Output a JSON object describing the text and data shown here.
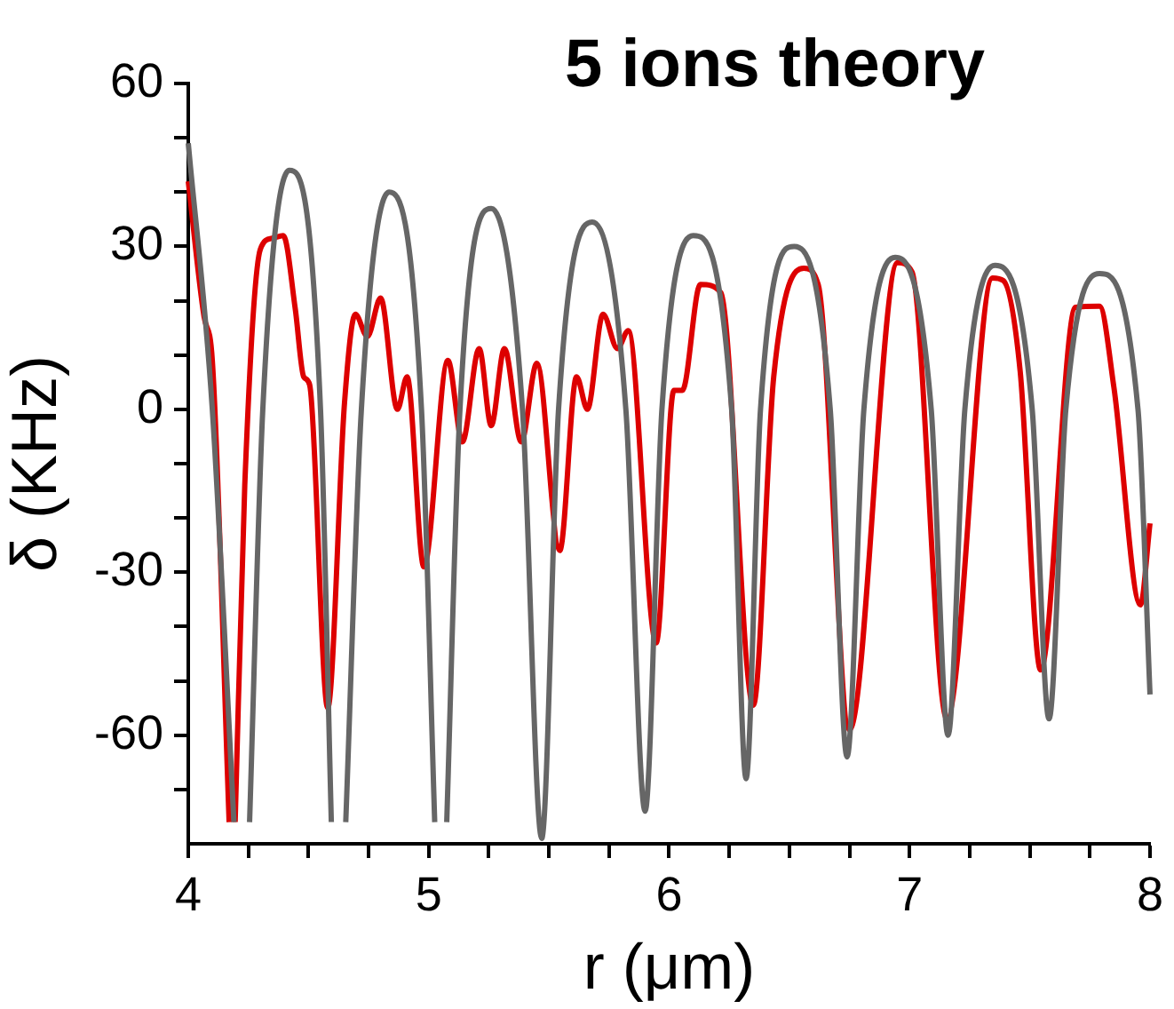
{
  "chart_data": {
    "type": "line",
    "title": "5 ions theory",
    "xlabel": "r (μm)",
    "ylabel": "δ (KHz)",
    "xlim": [
      4,
      8
    ],
    "xticks": [
      4,
      {
        "value": 4.25,
        "label": null
      },
      {
        "value": 4.5,
        "label": null
      },
      {
        "value": 4.75,
        "label": null
      },
      5,
      {
        "value": 5.25,
        "label": null
      },
      {
        "value": 5.5,
        "label": null
      },
      {
        "value": 5.75,
        "label": null
      },
      6,
      {
        "value": 6.25,
        "label": null
      },
      {
        "value": 6.5,
        "label": null
      },
      {
        "value": 6.75,
        "label": null
      },
      7,
      {
        "value": 7.25,
        "label": null
      },
      {
        "value": 7.5,
        "label": null
      },
      {
        "value": 7.75,
        "label": null
      },
      8
    ],
    "ylim": [
      -80,
      60
    ],
    "yticks": [
      {
        "value": -70,
        "label": null
      },
      -60,
      {
        "value": -50,
        "label": null
      },
      {
        "value": -40,
        "label": null
      },
      -30,
      {
        "value": -20,
        "label": null
      },
      {
        "value": -10,
        "label": null
      },
      0,
      {
        "value": 10,
        "label": null
      },
      {
        "value": 20,
        "label": null
      },
      30,
      {
        "value": 40,
        "label": null
      },
      {
        "value": 50,
        "label": null
      },
      60
    ],
    "grid": false,
    "legend": false,
    "marker": "none",
    "line_style": "solid",
    "series": [
      {
        "color": "#666666",
        "x": [
          4.0,
          4.1,
          4.19,
          4.22,
          4.255,
          4.31,
          4.42,
          4.55,
          4.595,
          4.625,
          4.655,
          4.72,
          4.835,
          4.97,
          5.025,
          5.05,
          5.075,
          5.13,
          5.26,
          5.39,
          5.47,
          5.54,
          5.68,
          5.82,
          5.9,
          5.97,
          6.1,
          6.26,
          6.32,
          6.38,
          6.52,
          6.67,
          6.74,
          6.81,
          6.94,
          7.09,
          7.16,
          7.23,
          7.355,
          7.51,
          7.58,
          7.65,
          7.79,
          7.95,
          8.0
        ],
        "values": [
          49,
          0,
          -76,
          null,
          -76,
          0,
          44,
          0,
          -76,
          null,
          -76,
          0,
          40,
          0,
          -76,
          null,
          -76,
          0,
          37,
          0,
          -79,
          0,
          34.5,
          0,
          -74,
          0,
          32,
          0,
          -68,
          0,
          30,
          0,
          -64,
          0,
          28,
          0,
          -60,
          0,
          26.5,
          0,
          -57,
          0,
          25,
          0,
          -52.5
        ]
      },
      {
        "color": "#dd0000",
        "x": [
          4.0,
          4.066,
          4.1,
          4.17,
          4.18,
          4.195,
          4.235,
          4.3,
          4.35,
          4.395,
          4.445,
          4.48,
          4.505,
          4.58,
          4.65,
          4.695,
          4.745,
          4.8,
          4.87,
          4.91,
          4.98,
          5.08,
          5.14,
          5.21,
          5.26,
          5.315,
          5.385,
          5.45,
          5.545,
          5.615,
          5.66,
          5.725,
          5.785,
          5.83,
          5.946,
          6.02,
          6.055,
          6.13,
          6.215,
          6.35,
          6.435,
          6.56,
          6.62,
          6.75,
          6.95,
          7.01,
          7.155,
          7.345,
          7.39,
          7.46,
          7.545,
          7.69,
          7.79,
          7.85,
          7.96,
          8.0
        ],
        "values": [
          42,
          17,
          9,
          -76,
          null,
          -76,
          -14,
          29.5,
          31.5,
          32,
          18.5,
          6,
          4.5,
          -55,
          1.3,
          17.5,
          13.4,
          20.5,
          0,
          6,
          -29,
          9,
          -6,
          11.2,
          -3,
          11.2,
          -6,
          8.5,
          -26,
          6,
          0,
          17.5,
          11.2,
          14.5,
          -43,
          3.5,
          3.5,
          23,
          21.5,
          -54.5,
          6,
          26,
          23,
          -59,
          27,
          25.3,
          -57,
          24.2,
          23.7,
          7,
          -48,
          18.8,
          19,
          4,
          -36,
          -21
        ]
      }
    ]
  }
}
